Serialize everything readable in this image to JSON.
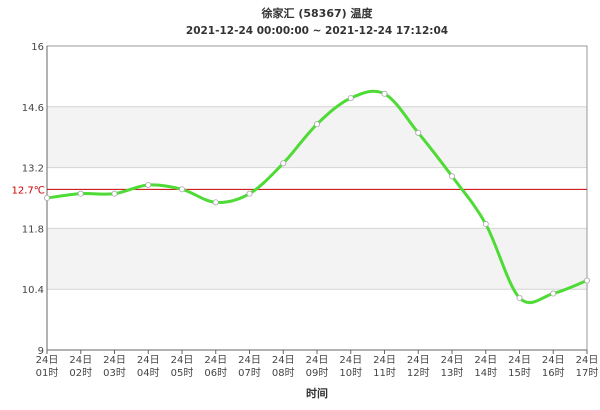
{
  "chart_data": {
    "type": "line",
    "title": "徐家汇 (58367) 温度",
    "subtitle": "2021-12-24 00:00:00 ~ 2021-12-24 17:12:04",
    "xlabel": "时间",
    "categories": [
      "24日01时",
      "24日02时",
      "24日03时",
      "24日04时",
      "24日05时",
      "24日06时",
      "24日07时",
      "24日08时",
      "24日09时",
      "24日10时",
      "24日11时",
      "24日12时",
      "24日13时",
      "24日14时",
      "24日15时",
      "24日16时",
      "24日17时"
    ],
    "values": [
      12.5,
      12.6,
      12.6,
      12.8,
      12.7,
      12.4,
      12.6,
      13.3,
      14.2,
      14.8,
      14.9,
      14.0,
      13.0,
      11.9,
      10.2,
      10.3,
      10.6
    ],
    "ylim": [
      9,
      16
    ],
    "yticks": [
      9,
      10.4,
      11.8,
      13.2,
      14.6,
      16
    ],
    "reference_line": {
      "value": 12.7,
      "label": "12.7℃",
      "color": "#cc0000"
    },
    "grid": true,
    "smooth": true,
    "line_color": "#4edb35",
    "point_color": "#ffffff"
  }
}
